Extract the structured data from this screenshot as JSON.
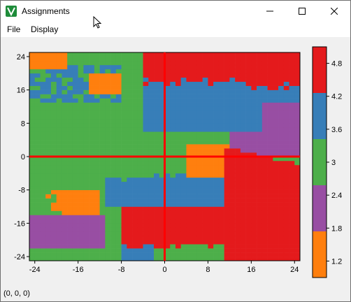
{
  "window": {
    "title": "Assignments",
    "controls": [
      "minimize-icon",
      "maximize-icon",
      "close-icon"
    ]
  },
  "menu": {
    "file": "File",
    "display": "Display"
  },
  "status": {
    "coords": "(0, 0, 0)"
  },
  "colors": {
    "orange": "#ff7f0e",
    "green": "#4daf4a",
    "blue": "#377eb8",
    "purple": "#984ea3",
    "red": "#e41a1c",
    "crosshair": "#ff0000"
  },
  "chart_data": {
    "type": "heatmap",
    "x_ticks": [
      "-24",
      "-16",
      "-8",
      "0",
      "8",
      "16",
      "24"
    ],
    "y_ticks": [
      "24",
      "16",
      "8",
      "0",
      "-8",
      "-16",
      "-24"
    ],
    "xlim": [
      -25,
      25
    ],
    "ylim": [
      -25,
      25
    ],
    "crosshair": {
      "x": 0,
      "y": 0
    },
    "colorbar": {
      "labels": [
        "4.8",
        "4.2",
        "3.6",
        "3",
        "2.4",
        "1.8",
        "1.2"
      ],
      "bins": [
        {
          "color": "#e41a1c"
        },
        {
          "color": "#377eb8"
        },
        {
          "color": "#4daf4a"
        },
        {
          "color": "#984ea3"
        },
        {
          "color": "#ff7f0e"
        }
      ]
    }
  }
}
